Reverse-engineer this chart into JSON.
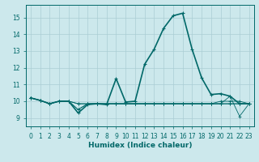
{
  "xlabel": "Humidex (Indice chaleur)",
  "background_color": "#cce8ec",
  "grid_color": "#aacdd4",
  "line_color": "#006868",
  "xlim": [
    -0.5,
    23.5
  ],
  "ylim": [
    8.5,
    15.75
  ],
  "yticks": [
    9,
    10,
    11,
    12,
    13,
    14,
    15
  ],
  "xticks": [
    0,
    1,
    2,
    3,
    4,
    5,
    6,
    7,
    8,
    9,
    10,
    11,
    12,
    13,
    14,
    15,
    16,
    17,
    18,
    19,
    20,
    21,
    22,
    23
  ],
  "series_main": [
    10.2,
    10.05,
    9.85,
    10.0,
    10.0,
    9.3,
    9.8,
    9.85,
    9.8,
    11.35,
    9.95,
    10.0,
    12.2,
    13.1,
    14.35,
    15.1,
    15.25,
    13.1,
    11.4,
    10.4,
    10.45,
    10.3,
    9.85,
    9.85
  ],
  "series_flat1": [
    10.2,
    10.05,
    9.85,
    10.0,
    10.0,
    9.85,
    9.85,
    9.85,
    9.85,
    9.85,
    9.85,
    9.85,
    9.85,
    9.85,
    9.85,
    9.85,
    9.85,
    9.85,
    9.85,
    9.85,
    9.85,
    9.85,
    9.85,
    9.85
  ],
  "series_flat2": [
    10.2,
    10.05,
    9.85,
    10.0,
    10.0,
    9.85,
    9.85,
    9.85,
    9.85,
    9.85,
    9.85,
    9.85,
    9.85,
    9.85,
    9.85,
    9.85,
    9.85,
    9.85,
    9.85,
    9.85,
    9.85,
    9.85,
    9.85,
    9.85
  ],
  "series_dip1": [
    10.2,
    10.05,
    9.85,
    10.0,
    10.0,
    9.5,
    9.85,
    9.85,
    9.85,
    9.85,
    9.85,
    9.85,
    9.85,
    9.85,
    9.85,
    9.85,
    9.85,
    9.85,
    9.85,
    9.85,
    9.85,
    10.3,
    9.1,
    9.85
  ],
  "series_dip2": [
    10.2,
    10.05,
    9.85,
    10.0,
    10.0,
    9.5,
    9.85,
    9.85,
    9.85,
    9.85,
    9.85,
    9.85,
    9.85,
    9.85,
    9.85,
    9.85,
    9.85,
    9.85,
    9.85,
    9.85,
    10.0,
    10.0,
    10.0,
    9.85
  ],
  "tick_fontsize": 5.5,
  "xlabel_fontsize": 6.5
}
